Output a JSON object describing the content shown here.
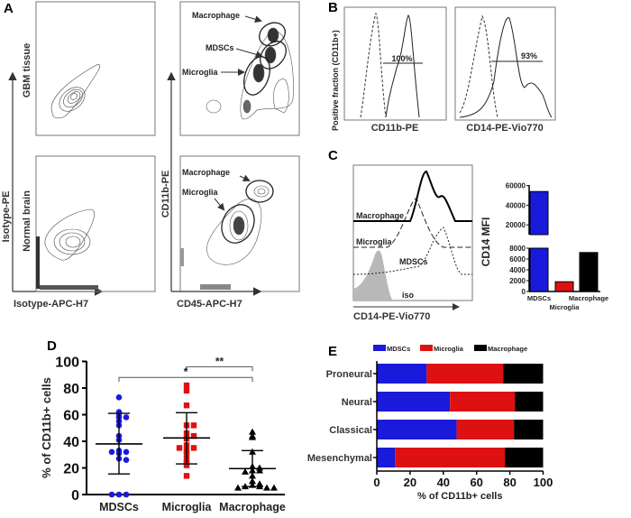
{
  "colors": {
    "MDSCs": "#1a1adb",
    "Microglia": "#dd1111",
    "Macrophage": "#000000",
    "iso_fill": "#b8b8b8"
  },
  "panel_a": {
    "letter": "A",
    "y_axis": "Isotype-PE",
    "x_axis": "Isotype-APC-H7",
    "row_labels": [
      "GBM tissue",
      "Normal brain"
    ],
    "right_y_axis": "CD11b-PE",
    "right_x_axis": "CD45-APC-H7",
    "gbm_gates": [
      "Macrophage",
      "MDSCs",
      "Microglia"
    ],
    "normal_gates": [
      "Macrophage",
      "Microglia"
    ]
  },
  "panel_b": {
    "letter": "B",
    "y_axis": "Positive fraction (CD11b+)",
    "plots": [
      {
        "x_axis": "CD11b-PE",
        "gate_label": "100%"
      },
      {
        "x_axis": "CD14-PE-Vio770",
        "gate_label": "93%"
      }
    ]
  },
  "panel_c": {
    "letter": "C",
    "histogram": {
      "x_axis": "CD14-PE-Vio770",
      "traces": [
        "Macrophage",
        "Microglia",
        "MDSCs",
        "iso"
      ]
    }
  },
  "chart_data": [
    {
      "panel": "C",
      "type": "bar",
      "categories": [
        "MDSCs",
        "Microglia",
        "Macrophage"
      ],
      "values": [
        54000,
        1800,
        7200
      ],
      "ylabel": "CD14 MFI",
      "y_broken_axis": {
        "lower": [
          0,
          8000
        ],
        "upper": [
          10000,
          60000
        ]
      },
      "y_ticks_lower": [
        0,
        2000,
        4000,
        6000,
        8000
      ],
      "y_ticks_upper": [
        20000,
        40000,
        60000
      ]
    },
    {
      "panel": "D",
      "type": "scatter",
      "categories": [
        "MDSCs",
        "Microglia",
        "Macrophage"
      ],
      "ylabel": "% of CD11b+ cells",
      "ylim": [
        0,
        100
      ],
      "y_ticks": [
        0,
        20,
        40,
        60,
        80,
        100
      ],
      "series": [
        {
          "name": "MDSCs",
          "marker": "circle",
          "values": [
            73,
            62,
            59,
            58,
            58,
            55,
            52,
            44,
            41,
            33,
            32,
            32,
            31,
            27,
            26,
            0,
            0,
            0
          ],
          "mean": 38,
          "sd": [
            15.5,
            61
          ]
        },
        {
          "name": "Microglia",
          "marker": "square",
          "values": [
            82,
            78,
            67,
            52,
            52,
            46,
            44,
            42,
            37,
            35,
            35,
            33,
            30,
            26,
            24,
            22,
            14
          ],
          "mean": 42.5,
          "sd": [
            23,
            61.5
          ]
        },
        {
          "name": "Macrophage",
          "marker": "triangle",
          "values": [
            47,
            44,
            43,
            32,
            21,
            20,
            18,
            18,
            17,
            14,
            10,
            8,
            7,
            6,
            6,
            5,
            5,
            5
          ],
          "mean": 19.5,
          "sd": [
            6,
            33
          ]
        }
      ],
      "significance": [
        {
          "from": "Microglia",
          "to": "Macrophage",
          "label": "**"
        },
        {
          "from": "MDSCs",
          "to": "Macrophage",
          "label": "*"
        }
      ]
    },
    {
      "panel": "E",
      "type": "bar",
      "orientation": "horizontal-stacked",
      "categories": [
        "Proneural",
        "Neural",
        "Classical",
        "Mesenchymal"
      ],
      "xlabel": "% of CD11b+ cells",
      "xlim": [
        0,
        100
      ],
      "x_ticks": [
        0,
        20,
        40,
        60,
        80,
        100
      ],
      "legend": "top",
      "series": [
        {
          "name": "MDSCs",
          "values": [
            30,
            44,
            48,
            11
          ]
        },
        {
          "name": "Microglia",
          "values": [
            46,
            39,
            34.5,
            66
          ]
        },
        {
          "name": "Macrophage",
          "values": [
            24,
            17,
            17.5,
            23
          ]
        }
      ]
    }
  ],
  "panel_d": {
    "letter": "D"
  },
  "panel_e": {
    "letter": "E"
  }
}
